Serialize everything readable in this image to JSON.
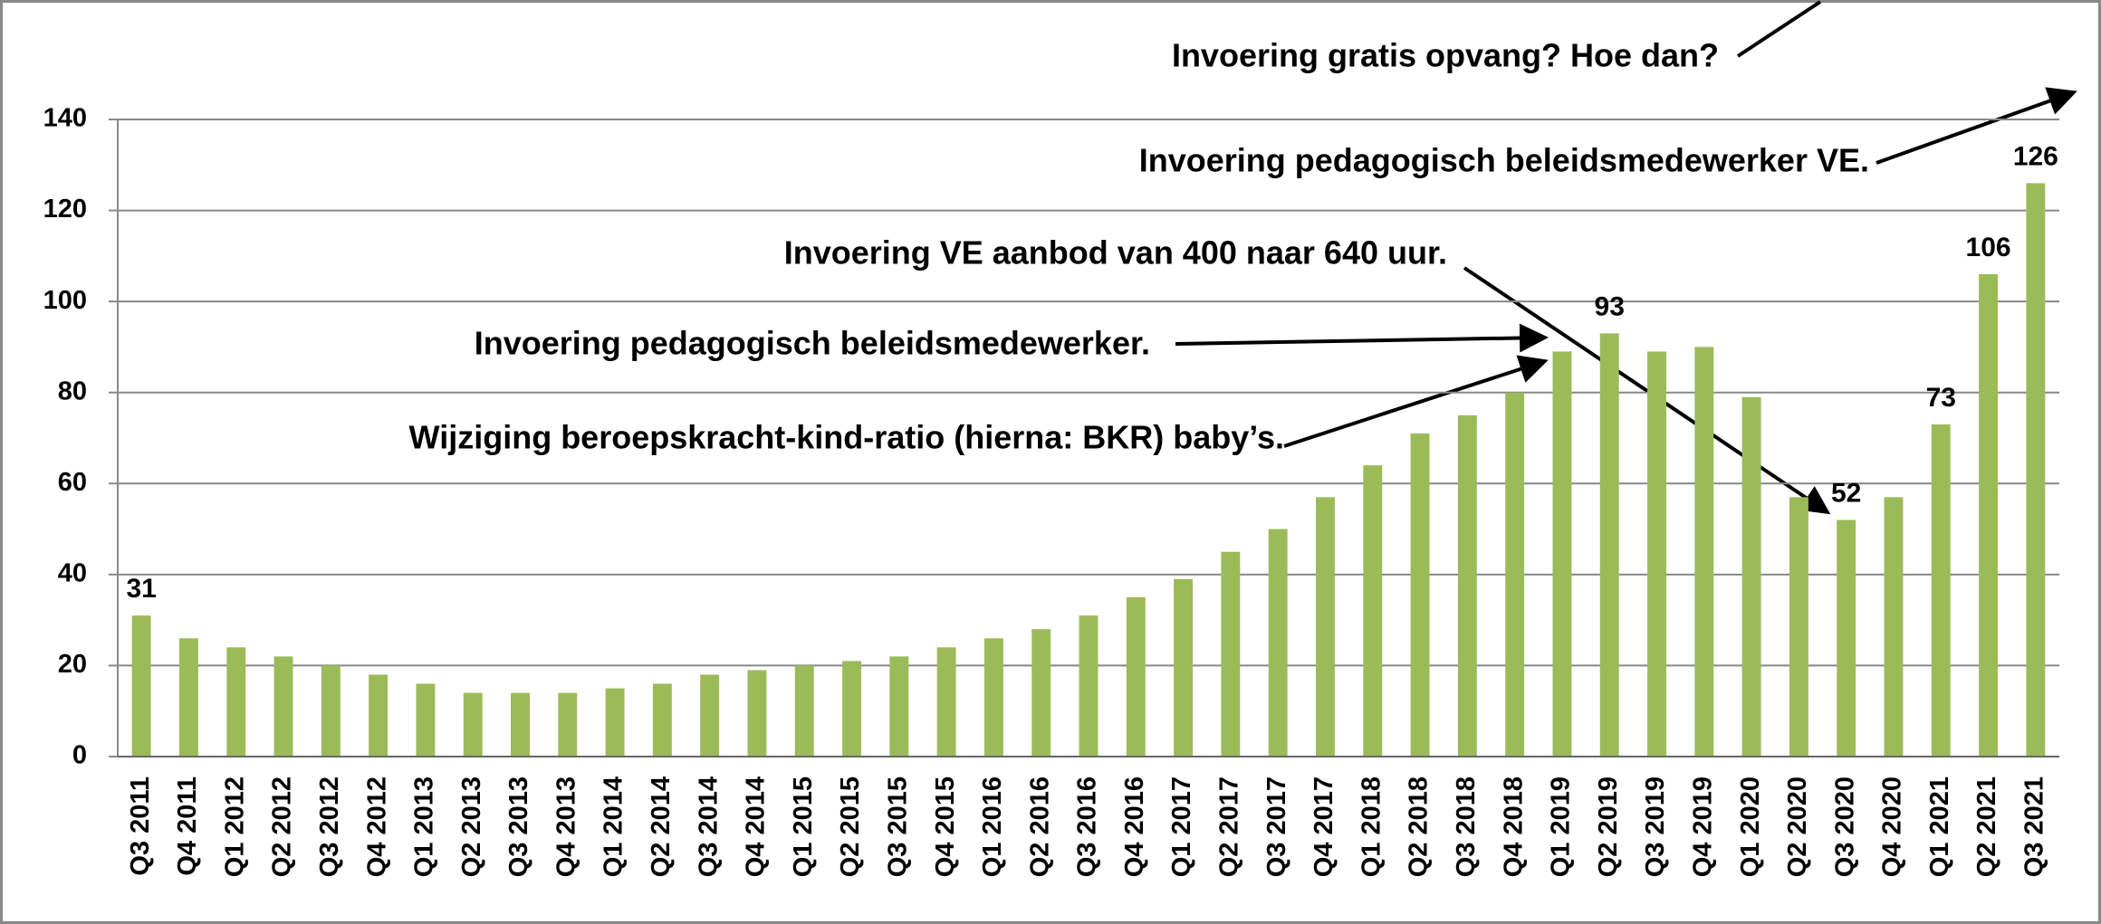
{
  "chart_data": {
    "type": "bar",
    "categories": [
      "Q3 2011",
      "Q4 2011",
      "Q1 2012",
      "Q2 2012",
      "Q3 2012",
      "Q4 2012",
      "Q1 2013",
      "Q2 2013",
      "Q3 2013",
      "Q4 2013",
      "Q1 2014",
      "Q2 2014",
      "Q3 2014",
      "Q4 2014",
      "Q1 2015",
      "Q2 2015",
      "Q3 2015",
      "Q4 2015",
      "Q1 2016",
      "Q2 2016",
      "Q3 2016",
      "Q4 2016",
      "Q1 2017",
      "Q2 2017",
      "Q3 2017",
      "Q4 2017",
      "Q1 2018",
      "Q2 2018",
      "Q3 2018",
      "Q4 2018",
      "Q1 2019",
      "Q2 2019",
      "Q3 2019",
      "Q4 2019",
      "Q1 2020",
      "Q2 2020",
      "Q3 2020",
      "Q4 2020",
      "Q1 2021",
      "Q2 2021",
      "Q3 2021"
    ],
    "values": [
      31,
      26,
      24,
      22,
      20,
      18,
      16,
      14,
      14,
      14,
      15,
      16,
      18,
      19,
      20,
      21,
      22,
      24,
      26,
      28,
      31,
      35,
      39,
      45,
      50,
      57,
      64,
      71,
      75,
      80,
      89,
      93,
      89,
      90,
      79,
      57,
      52,
      57,
      73,
      106,
      126
    ],
    "value_labels": [
      "31",
      null,
      null,
      null,
      null,
      null,
      null,
      null,
      null,
      null,
      null,
      null,
      null,
      null,
      null,
      null,
      null,
      null,
      null,
      null,
      null,
      null,
      null,
      null,
      null,
      null,
      null,
      null,
      null,
      null,
      null,
      "93",
      null,
      null,
      null,
      null,
      "52",
      null,
      "73",
      "106",
      "126"
    ],
    "color": "#9bbb59",
    "ylim": [
      0,
      140
    ],
    "yticks": [
      0,
      20,
      40,
      60,
      80,
      100,
      120,
      140
    ],
    "grid": true,
    "annotations": [
      "Invoering gratis opvang? Hoe dan?",
      "Invoering pedagogisch beleidsmedewerker VE.",
      "Invoering VE aanbod van 400 naar 640 uur.",
      "Invoering pedagogisch beleidsmedewerker.",
      "Wijziging beroepskracht-kind-ratio (hierna: BKR) baby’s."
    ]
  }
}
